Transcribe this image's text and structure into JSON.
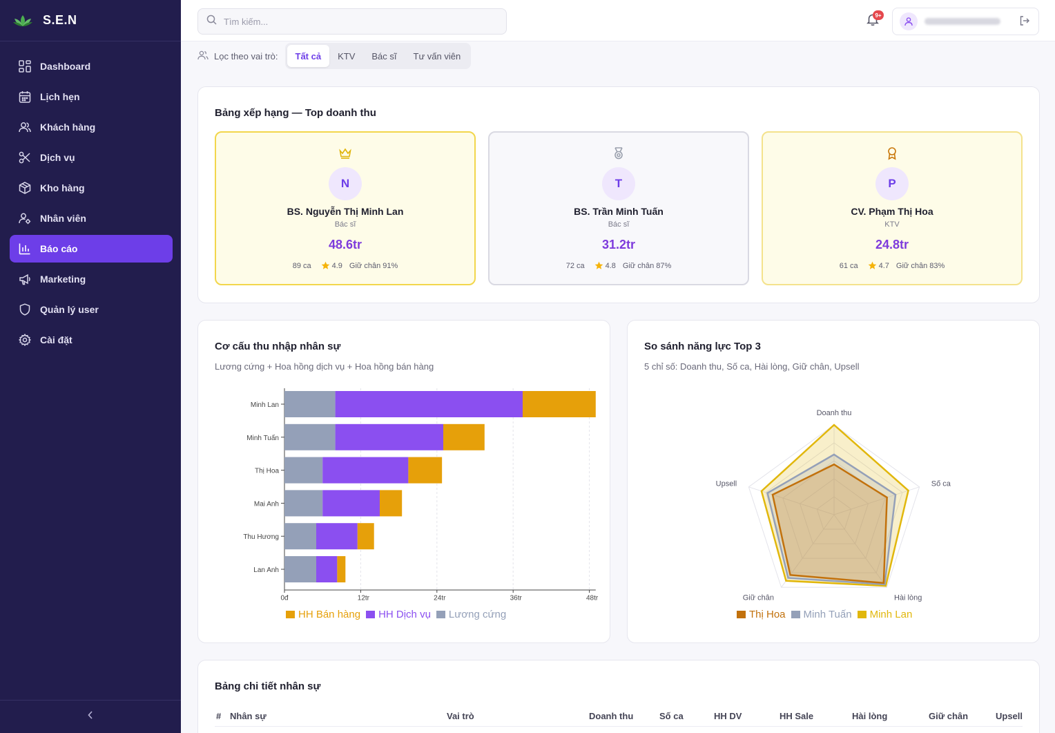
{
  "brand": {
    "name": "S.E.N"
  },
  "sidebar": {
    "items": [
      {
        "label": "Dashboard",
        "icon": "dashboard-icon"
      },
      {
        "label": "Lịch hẹn",
        "icon": "calendar-icon"
      },
      {
        "label": "Khách hàng",
        "icon": "users-icon"
      },
      {
        "label": "Dịch vụ",
        "icon": "scissors-icon"
      },
      {
        "label": "Kho hàng",
        "icon": "box-icon"
      },
      {
        "label": "Nhân viên",
        "icon": "user-cog-icon"
      },
      {
        "label": "Báo cáo",
        "icon": "bar-chart-icon",
        "active": true
      },
      {
        "label": "Marketing",
        "icon": "megaphone-icon"
      },
      {
        "label": "Quản lý user",
        "icon": "shield-icon"
      },
      {
        "label": "Cài đặt",
        "icon": "settings-icon"
      }
    ]
  },
  "topbar": {
    "search_placeholder": "Tìm kiếm...",
    "notification_badge": "9+"
  },
  "filter": {
    "label": "Lọc theo vai trò:",
    "tabs": [
      "Tất cả",
      "KTV",
      "Bác sĩ",
      "Tư vấn viên"
    ],
    "active_tab": "Tất cả"
  },
  "leaderboard": {
    "title": "Bảng xếp hạng — Top doanh thu",
    "cards": [
      {
        "icon": "crown-icon",
        "initial": "N",
        "name": "BS. Nguyễn Thị Minh Lan",
        "role": "Bác sĩ",
        "revenue": "48.6tr",
        "cases": "89 ca",
        "rating": "4.9",
        "retention": "Giữ chân 91%"
      },
      {
        "icon": "medal-icon",
        "initial": "T",
        "name": "BS. Trần Minh Tuấn",
        "role": "Bác sĩ",
        "revenue": "31.2tr",
        "cases": "72 ca",
        "rating": "4.8",
        "retention": "Giữ chân 87%"
      },
      {
        "icon": "award-icon",
        "initial": "P",
        "name": "CV. Phạm Thị Hoa",
        "role": "KTV",
        "revenue": "24.8tr",
        "cases": "61 ca",
        "rating": "4.7",
        "retention": "Giữ chân 83%"
      }
    ]
  },
  "income_card": {
    "title": "Cơ cấu thu nhập nhân sự",
    "subtitle": "Lương cứng + Hoa hồng dịch vụ + Hoa hồng bán hàng"
  },
  "radar_card": {
    "title": "So sánh năng lực Top 3",
    "subtitle": "5 chỉ số: Doanh thu, Số ca, Hài lòng, Giữ chân, Upsell"
  },
  "table_card": {
    "title": "Bảng chi tiết nhân sự",
    "headers": [
      "#",
      "Nhân sự",
      "Vai trò",
      "Doanh thu",
      "Số ca",
      "HH DV",
      "HH Sale",
      "Hài lòng",
      "Giữ chân",
      "Upsell"
    ]
  },
  "chart_data": [
    {
      "type": "bar",
      "orientation": "horizontal",
      "stacked": true,
      "categories": [
        "Minh Lan",
        "Minh Tuấn",
        "Thị Hoa",
        "Mai Anh",
        "Thu Hương",
        "Lan Anh"
      ],
      "series": [
        {
          "name": "Lương cứng",
          "color": "#94a0b8",
          "values": [
            8,
            8,
            6,
            6,
            5,
            5
          ]
        },
        {
          "name": "HH Dịch vụ",
          "color": "#8b4ff0",
          "values": [
            29.5,
            17,
            13.5,
            9,
            6.5,
            3.3
          ]
        },
        {
          "name": "HH Bán hàng",
          "color": "#e6a00a",
          "values": [
            11.5,
            6.5,
            5.3,
            3.5,
            2.6,
            1.3
          ]
        }
      ],
      "legend_order": [
        "HH Bán hàng",
        "HH Dịch vụ",
        "Lương cứng"
      ],
      "x_ticks": [
        {
          "value": 0,
          "label": "0đ"
        },
        {
          "value": 12,
          "label": "12tr"
        },
        {
          "value": 24,
          "label": "24tr"
        },
        {
          "value": 36,
          "label": "36tr"
        },
        {
          "value": 48,
          "label": "48tr"
        }
      ],
      "xlim": [
        0,
        49
      ],
      "grid": true,
      "legend_position": "bottom"
    },
    {
      "type": "radar",
      "axes": [
        "Doanh thu",
        "Số ca",
        "Hài lòng",
        "Giữ chân",
        "Upsell"
      ],
      "max": 100,
      "series": [
        {
          "name": "Thị Hoa",
          "color": "#c2710c",
          "values": [
            56,
            62,
            94,
            83,
            72
          ]
        },
        {
          "name": "Minh Tuấn",
          "color": "#94a0b8",
          "values": [
            67,
            72,
            96,
            87,
            78
          ]
        },
        {
          "name": "Minh Lan",
          "color": "#e1b70c",
          "values": [
            100,
            87,
            98,
            91,
            85
          ]
        }
      ],
      "legend_position": "bottom"
    }
  ]
}
